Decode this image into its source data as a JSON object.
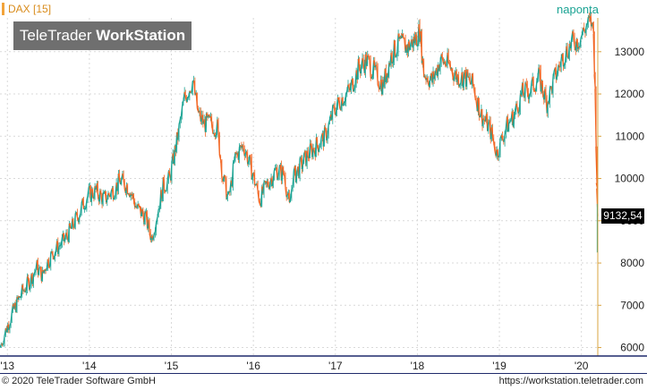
{
  "header": {
    "symbol_label": "DAX [15]",
    "watermark_brand": "TeleTrader",
    "watermark_product": "WorkStation",
    "period_label": "naponta",
    "last_value": "9132,54"
  },
  "footer": {
    "copyright": "© 2020 TeleTrader Software GmbH",
    "url": "https://workstation.teletrader.com"
  },
  "colors": {
    "up": "#1aa393",
    "down": "#f26522",
    "axis": "#d9a441",
    "grid": "#d9d9d9"
  },
  "chart_data": {
    "type": "line",
    "title": "",
    "xlabel": "",
    "ylabel": "",
    "x_ticks": [
      "'13",
      "'14",
      "'15",
      "'16",
      "'17",
      "'18",
      "'19",
      "'20"
    ],
    "y_ticks": [
      6000,
      7000,
      8000,
      9000,
      10000,
      11000,
      12000,
      13000
    ],
    "ylim": [
      5800,
      13800
    ],
    "xlim": [
      2012.93,
      2020.22
    ],
    "grid": true,
    "series": [
      {
        "x": [
          2012.93,
          2013.0,
          2013.1,
          2013.2,
          2013.3,
          2013.38,
          2013.45,
          2013.5,
          2013.6,
          2013.7,
          2013.8,
          2013.9,
          2014.0,
          2014.1,
          2014.2,
          2014.3,
          2014.4,
          2014.5,
          2014.6,
          2014.7,
          2014.78,
          2014.85,
          2014.92,
          2015.0,
          2015.1,
          2015.18,
          2015.28,
          2015.35,
          2015.42,
          2015.5,
          2015.58,
          2015.65,
          2015.72,
          2015.8,
          2015.9,
          2016.0,
          2016.1,
          2016.2,
          2016.3,
          2016.4,
          2016.46,
          2016.5,
          2016.6,
          2016.7,
          2016.8,
          2016.9,
          2017.0,
          2017.1,
          2017.2,
          2017.3,
          2017.4,
          2017.5,
          2017.6,
          2017.7,
          2017.8,
          2017.9,
          2018.0,
          2018.05,
          2018.1,
          2018.2,
          2018.3,
          2018.4,
          2018.5,
          2018.6,
          2018.7,
          2018.8,
          2018.9,
          2018.99,
          2019.1,
          2019.2,
          2019.3,
          2019.4,
          2019.5,
          2019.6,
          2019.7,
          2019.8,
          2019.9,
          2020.0,
          2020.08,
          2020.14,
          2020.17,
          2020.19,
          2020.21,
          2020.22
        ],
        "y": [
          6000,
          6400,
          6900,
          7300,
          7600,
          7900,
          7700,
          8000,
          8300,
          8500,
          8800,
          9200,
          9600,
          9700,
          9500,
          9700,
          9950,
          9800,
          9300,
          9100,
          8600,
          9200,
          9800,
          10000,
          11000,
          11900,
          12300,
          11500,
          11300,
          11300,
          11200,
          10000,
          9500,
          10500,
          10800,
          10200,
          9500,
          9900,
          10200,
          10100,
          9300,
          10000,
          10300,
          10600,
          10800,
          11000,
          11600,
          11900,
          12100,
          12600,
          12800,
          12500,
          12200,
          12900,
          13200,
          13100,
          13300,
          13500,
          12500,
          12300,
          12800,
          12700,
          12400,
          12400,
          12200,
          11500,
          11200,
          10600,
          11200,
          11500,
          12000,
          12100,
          12400,
          11800,
          12400,
          12900,
          13200,
          13300,
          13600,
          13700,
          13400,
          12000,
          10000,
          9132.54
        ]
      }
    ]
  }
}
